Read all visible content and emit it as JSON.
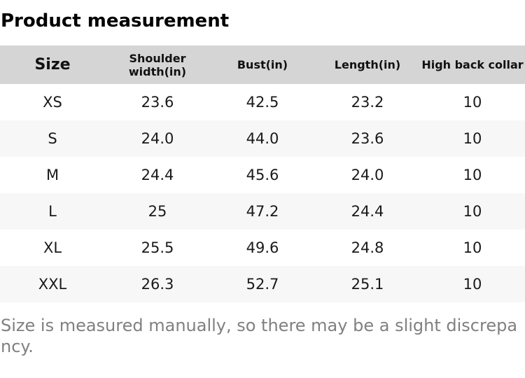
{
  "title": "Product measurement",
  "table": {
    "headers": [
      "Size",
      "Shoulder width(in)",
      "Bust(in)",
      "Length(in)",
      "High back collar"
    ],
    "rows": [
      {
        "cells": [
          "XS",
          "23.6",
          "42.5",
          "23.2",
          "10"
        ]
      },
      {
        "cells": [
          "S",
          "24.0",
          "44.0",
          "23.6",
          "10"
        ]
      },
      {
        "cells": [
          "M",
          "24.4",
          "45.6",
          "24.0",
          "10"
        ]
      },
      {
        "cells": [
          "L",
          "25",
          "47.2",
          "24.4",
          "10"
        ]
      },
      {
        "cells": [
          "XL",
          "25.5",
          "49.6",
          "24.8",
          "10"
        ]
      },
      {
        "cells": [
          "XXL",
          "26.3",
          "52.7",
          "25.1",
          "10"
        ]
      }
    ]
  },
  "note": "Size is measured manually, so there may be a slight discrepancy.",
  "colors": {
    "header_bg": "#d5d5d5",
    "row_alt_bg": "#f7f7f7",
    "note_text": "#808080",
    "body_text": "#1a1a1a"
  }
}
